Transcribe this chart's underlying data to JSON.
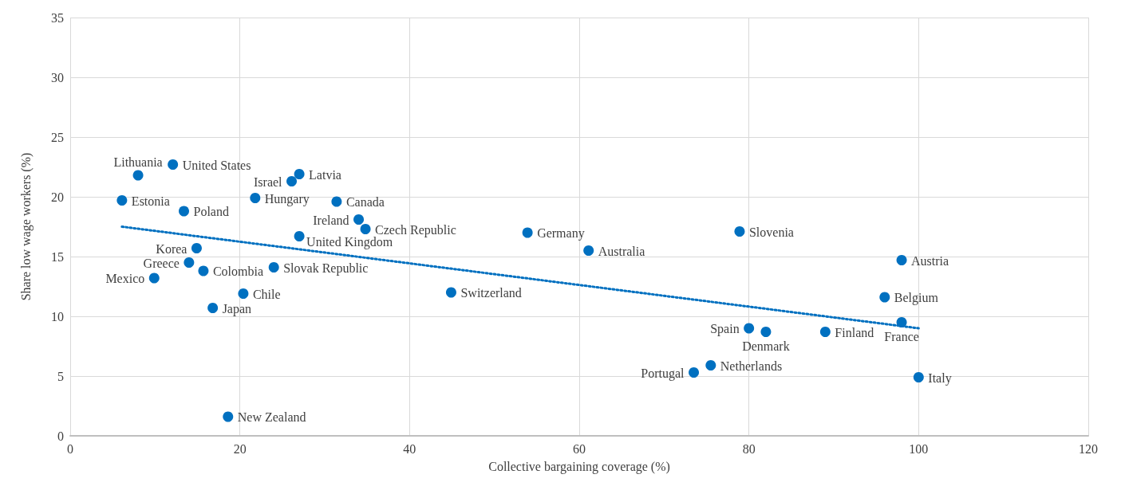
{
  "chart_data": {
    "type": "scatter",
    "xlabel": "Collective bargaining coverage (%)",
    "ylabel": "Share low wage workers (%)",
    "xlim": [
      0,
      120
    ],
    "xticks": [
      0,
      20,
      40,
      60,
      80,
      100,
      120
    ],
    "ylim": [
      0,
      35
    ],
    "yticks": [
      0,
      5,
      10,
      15,
      20,
      25,
      30,
      35
    ],
    "grid": true,
    "marker": "circle",
    "series": [
      {
        "color": "#0070c0",
        "x": [
          12.1,
          8.0,
          6.1,
          13.4,
          27.0,
          26.1,
          21.8,
          31.4,
          34.0,
          34.8,
          27.0,
          14.9,
          14.0,
          15.7,
          9.9,
          24.0,
          20.4,
          16.8,
          18.6,
          44.9,
          53.9,
          61.1,
          78.9,
          98.0,
          96.0,
          98.0,
          80.0,
          82.0,
          89.0,
          75.5,
          73.5,
          100.0
        ],
        "values": [
          22.7,
          21.8,
          19.7,
          18.8,
          21.9,
          21.3,
          19.9,
          19.6,
          18.1,
          17.3,
          16.7,
          15.7,
          14.5,
          13.8,
          13.2,
          14.1,
          11.9,
          10.7,
          1.6,
          12.0,
          17.0,
          15.5,
          17.1,
          14.7,
          11.6,
          9.5,
          9.0,
          8.7,
          8.7,
          5.9,
          5.3,
          4.9
        ]
      },
      {
        "type": "line",
        "color": "#0070c0",
        "line_style": "dotted",
        "marker": "none",
        "x": [
          6.1,
          100
        ],
        "values": [
          17.5,
          9.0
        ]
      }
    ],
    "annotations": [
      {
        "text": "United States",
        "x": 12.1,
        "y": 22.7
      },
      {
        "text": "Lithuania",
        "x": 8.0,
        "y": 21.8
      },
      {
        "text": "Estonia",
        "x": 6.1,
        "y": 19.7
      },
      {
        "text": "Poland",
        "x": 13.4,
        "y": 18.8
      },
      {
        "text": "Latvia",
        "x": 27.0,
        "y": 21.9
      },
      {
        "text": "Israel",
        "x": 26.1,
        "y": 21.3
      },
      {
        "text": "Hungary",
        "x": 21.8,
        "y": 19.9
      },
      {
        "text": "Canada",
        "x": 31.4,
        "y": 19.6
      },
      {
        "text": "Ireland",
        "x": 34.0,
        "y": 18.1
      },
      {
        "text": "Czech Republic",
        "x": 34.8,
        "y": 17.3
      },
      {
        "text": "United Kingdom",
        "x": 27.0,
        "y": 16.7
      },
      {
        "text": "Korea",
        "x": 14.9,
        "y": 15.7
      },
      {
        "text": "Greece",
        "x": 14.0,
        "y": 14.5
      },
      {
        "text": "Colombia",
        "x": 15.7,
        "y": 13.8
      },
      {
        "text": "Mexico",
        "x": 9.9,
        "y": 13.2
      },
      {
        "text": "Slovak Republic",
        "x": 24.0,
        "y": 14.1
      },
      {
        "text": "Chile",
        "x": 20.4,
        "y": 11.9
      },
      {
        "text": "Japan",
        "x": 16.8,
        "y": 10.7
      },
      {
        "text": "New Zealand",
        "x": 18.6,
        "y": 1.6
      },
      {
        "text": "Switzerland",
        "x": 44.9,
        "y": 12.0
      },
      {
        "text": "Germany",
        "x": 53.9,
        "y": 17.0
      },
      {
        "text": "Australia",
        "x": 61.1,
        "y": 15.5
      },
      {
        "text": "Slovenia",
        "x": 78.9,
        "y": 17.1
      },
      {
        "text": "Austria",
        "x": 98.0,
        "y": 14.7
      },
      {
        "text": "Belgium",
        "x": 96.0,
        "y": 11.6
      },
      {
        "text": "France",
        "x": 98.0,
        "y": 9.5
      },
      {
        "text": "Spain",
        "x": 80.0,
        "y": 9.0
      },
      {
        "text": "Denmark",
        "x": 82.0,
        "y": 8.7
      },
      {
        "text": "Finland",
        "x": 89.0,
        "y": 8.7
      },
      {
        "text": "Netherlands",
        "x": 75.5,
        "y": 5.9
      },
      {
        "text": "Portugal",
        "x": 73.5,
        "y": 5.3
      },
      {
        "text": "Italy",
        "x": 100.0,
        "y": 4.9
      }
    ]
  }
}
